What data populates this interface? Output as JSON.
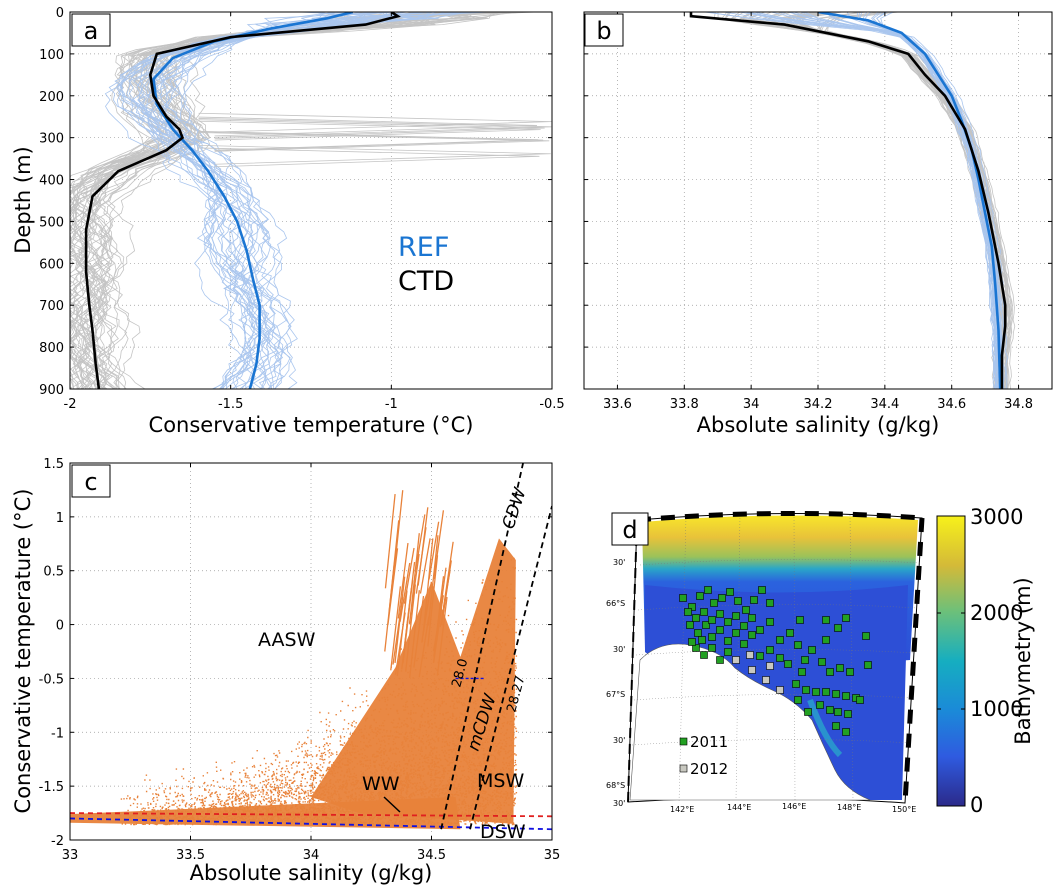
{
  "panel_labels": [
    "a",
    "b",
    "c",
    "d"
  ],
  "chart_data": [
    {
      "panel": "a",
      "type": "line",
      "xlabel": "Conservative temperature (°C)",
      "ylabel": "Depth (m)",
      "xlim": [
        -2,
        -0.5
      ],
      "ylim": [
        900,
        0
      ],
      "xticks": [
        "-2",
        "-1.5",
        "-1",
        "-0.5"
      ],
      "yticks": [
        "0",
        "100",
        "200",
        "300",
        "400",
        "500",
        "600",
        "700",
        "800",
        "900"
      ],
      "grid": true,
      "legend": [
        "REF",
        "CTD"
      ],
      "legend_colors": [
        "#1a75d2",
        "#000000"
      ],
      "series": [
        {
          "name": "REF",
          "color": "#1a75d2",
          "x": [
            -1.12,
            -1.2,
            -1.38,
            -1.55,
            -1.68,
            -1.74,
            -1.73,
            -1.68,
            -1.62,
            -1.57,
            -1.52,
            -1.48,
            -1.45,
            -1.43,
            -1.41,
            -1.41,
            -1.42,
            -1.44
          ],
          "y": [
            0,
            15,
            40,
            70,
            110,
            160,
            220,
            280,
            330,
            380,
            440,
            500,
            570,
            640,
            700,
            780,
            840,
            900
          ]
        },
        {
          "name": "CTD",
          "color": "#000000",
          "x": [
            -1.0,
            -0.98,
            -1.08,
            -1.5,
            -1.73,
            -1.75,
            -1.74,
            -1.7,
            -1.66,
            -1.65,
            -1.7,
            -1.85,
            -1.93,
            -1.95,
            -1.95,
            -1.94,
            -1.93,
            -1.92,
            -1.91
          ],
          "y": [
            0,
            10,
            30,
            60,
            100,
            150,
            200,
            250,
            280,
            300,
            330,
            380,
            440,
            520,
            620,
            700,
            760,
            840,
            900
          ]
        }
      ]
    },
    {
      "panel": "b",
      "type": "line",
      "xlabel": "Absolute salinity (g/kg)",
      "ylabel": "",
      "xlim": [
        33.5,
        34.9
      ],
      "ylim": [
        900,
        0
      ],
      "xticks": [
        "33.6",
        "33.8",
        "34",
        "34.2",
        "34.4",
        "34.6",
        "34.8"
      ],
      "grid": true,
      "series": [
        {
          "name": "REF",
          "color": "#1a75d2",
          "x": [
            34.2,
            34.35,
            34.45,
            34.52,
            34.56,
            34.6,
            34.63,
            34.66,
            34.68,
            34.7,
            34.72,
            34.73,
            34.74,
            34.745
          ],
          "y": [
            0,
            20,
            50,
            100,
            150,
            200,
            260,
            330,
            400,
            480,
            560,
            650,
            760,
            900
          ]
        },
        {
          "name": "CTD",
          "color": "#000000",
          "x": [
            33.82,
            33.82,
            34.1,
            34.35,
            34.47,
            34.52,
            34.58,
            34.64,
            34.68,
            34.71,
            34.74,
            34.76,
            34.76,
            34.75,
            34.75
          ],
          "y": [
            0,
            10,
            30,
            70,
            100,
            150,
            200,
            280,
            380,
            480,
            600,
            700,
            750,
            820,
            900
          ]
        }
      ]
    },
    {
      "panel": "c",
      "type": "scatter",
      "xlabel": "Absolute salinity (g/kg)",
      "ylabel": "Conservative temperature (°C)",
      "xlim": [
        33,
        35
      ],
      "ylim": [
        -2,
        1.5
      ],
      "xticks": [
        "33",
        "33.5",
        "34",
        "34.5",
        "35"
      ],
      "yticks": [
        "-2",
        "-1.5",
        "-1",
        "-0.5",
        "0",
        "0.5",
        "1",
        "1.5"
      ],
      "grid": true,
      "annotations": [
        "AASW",
        "CDW",
        "mCDW",
        "MSW",
        "WW",
        "DSW",
        "28.0",
        "28.27"
      ],
      "lines": [
        {
          "name": "freezing line",
          "color": "#e02020",
          "x": [
            33,
            35
          ],
          "y": [
            -1.75,
            -1.78
          ]
        },
        {
          "name": "surface freezing",
          "color": "#1010e0",
          "x": [
            33,
            35
          ],
          "y": [
            -1.8,
            -1.9
          ]
        },
        {
          "name": "28.0",
          "color": "#000000",
          "x": [
            34.54,
            34.88
          ],
          "y": [
            -1.9,
            1.5
          ]
        },
        {
          "name": "28.27",
          "color": "#000000",
          "x": [
            34.66,
            35.0
          ],
          "y": [
            -1.9,
            1.1
          ]
        }
      ]
    },
    {
      "panel": "d",
      "type": "heatmap",
      "colorbar_label": "Bathymetry (m)",
      "colorbar_ticks": [
        "3000",
        "2000",
        "1000",
        "0"
      ],
      "lon_ticks": [
        "142°E",
        "144°E",
        "146°E",
        "148°E",
        "150°E"
      ],
      "lat_ticks": [
        "30'",
        "66°S",
        "30'",
        "67°S",
        "30'",
        "68°S",
        "30'"
      ],
      "legend": [
        {
          "label": "2011",
          "color": "#22a022"
        },
        {
          "label": "2012",
          "color": "#c8c8c0"
        }
      ]
    }
  ]
}
